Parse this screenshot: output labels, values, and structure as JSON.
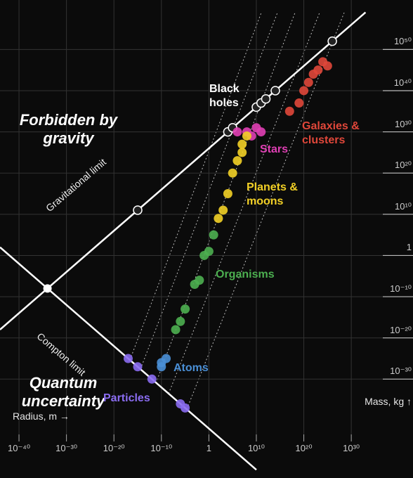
{
  "chart_data": {
    "type": "scatter",
    "x_label": "Radius, m →",
    "y_label": "Mass, kg ↑",
    "xscale": "log",
    "yscale": "log",
    "grid": true,
    "xlim": [
      1e-44,
      1e+43
    ],
    "ylim": [
      1e-54,
      1e+62
    ],
    "xticks": [
      {
        "value": 1e-40,
        "label": "10⁻⁴⁰"
      },
      {
        "value": 1e-30,
        "label": "10⁻³⁰"
      },
      {
        "value": 1e-20,
        "label": "10⁻²⁰"
      },
      {
        "value": 1e-10,
        "label": "10⁻¹⁰"
      },
      1,
      {
        "value": 10000000000.0,
        "label": "10¹⁰"
      },
      {
        "value": 1e+20,
        "label": "10²⁰"
      },
      {
        "value": 1e+30,
        "label": "10³⁰"
      }
    ],
    "yticks": [
      {
        "value": 1e+50,
        "label": "10⁵⁰"
      },
      {
        "value": 1e+40,
        "label": "10⁴⁰"
      },
      {
        "value": 1e+30,
        "label": "10³⁰"
      },
      {
        "value": 1e+20,
        "label": "10²⁰"
      },
      {
        "value": 10000000000.0,
        "label": "10¹⁰"
      },
      1,
      {
        "value": 1e-10,
        "label": "10⁻¹⁰"
      },
      {
        "value": 1e-20,
        "label": "10⁻²⁰"
      },
      {
        "value": 1e-30,
        "label": "10⁻³⁰"
      }
    ],
    "annotations": [
      {
        "text": "Forbidden by gravity"
      },
      {
        "text": "Quantum uncertainty"
      }
    ],
    "limits": [
      {
        "name": "Gravitational limit",
        "color": "#ffffff",
        "x": [
          1e-44,
          1e+33
        ],
        "values": [
          1e-18,
          1e+59
        ]
      },
      {
        "name": "Compton limit",
        "color": "#ffffff",
        "x": [
          1e-44,
          10000000000.0
        ],
        "values": [
          100,
          1e-52
        ]
      }
    ],
    "series": [
      {
        "name": "Black holes",
        "color": "#ffffff",
        "x": [
          1e-15,
          10000.0,
          100000.0,
          10000000000.0,
          100000000000.0,
          1000000000000.0,
          100000000000000.0,
          1e+26
        ],
        "values": [
          100000000000.0,
          1e+30,
          1e+31,
          1e+36,
          1e+37,
          1e+38,
          1e+40,
          1e+52
        ]
      },
      {
        "name": "Galaxies & clusters",
        "color": "#e0473a",
        "x": [
          1e+17,
          1e+19,
          1e+20,
          1e+21,
          1e+22,
          1e+23,
          1e+24,
          1e+25
        ],
        "values": [
          1e+35,
          1e+37,
          1e+40,
          1e+42,
          1e+44,
          1e+45,
          1e+47,
          1e+46
        ]
      },
      {
        "name": "Stars",
        "color": "#e03fb4",
        "x": [
          1000000.0,
          100000000.0,
          10000000000.0,
          100000000000.0,
          1000000000.0
        ],
        "values": [
          1e+30,
          1e+30,
          1e+31,
          1e+30,
          1e+29
        ]
      },
      {
        "name": "Planets & moons",
        "color": "#f2d026",
        "x": [
          100.0,
          1000.0,
          10000.0,
          100000.0,
          1000000.0,
          10000000.0,
          10000000.0,
          100000000.0
        ],
        "values": [
          1000000000.0,
          100000000000.0,
          1000000000000000.0,
          1e+20,
          1e+23,
          1e+25,
          1e+27,
          1e+29
        ]
      },
      {
        "name": "Organisms",
        "color": "#4caf50",
        "x": [
          1e-07,
          1e-06,
          1e-05,
          0.001,
          0.01,
          0.1,
          1,
          10
        ],
        "values": [
          1e-18,
          1e-16,
          1e-13,
          1e-07,
          1e-06,
          1,
          10,
          100000.0
        ]
      },
      {
        "name": "Atoms",
        "color": "#4a8fd6",
        "x": [
          1e-10,
          1e-10,
          1e-09
        ],
        "values": [
          1e-27,
          1e-26,
          1e-25
        ]
      },
      {
        "name": "Particles",
        "color": "#8a6cf0",
        "x": [
          1e-17,
          1e-15,
          1e-12,
          1e-06,
          1e-05
        ],
        "values": [
          1e-25,
          1e-27,
          1e-30,
          1e-36,
          1e-37
        ]
      }
    ]
  }
}
